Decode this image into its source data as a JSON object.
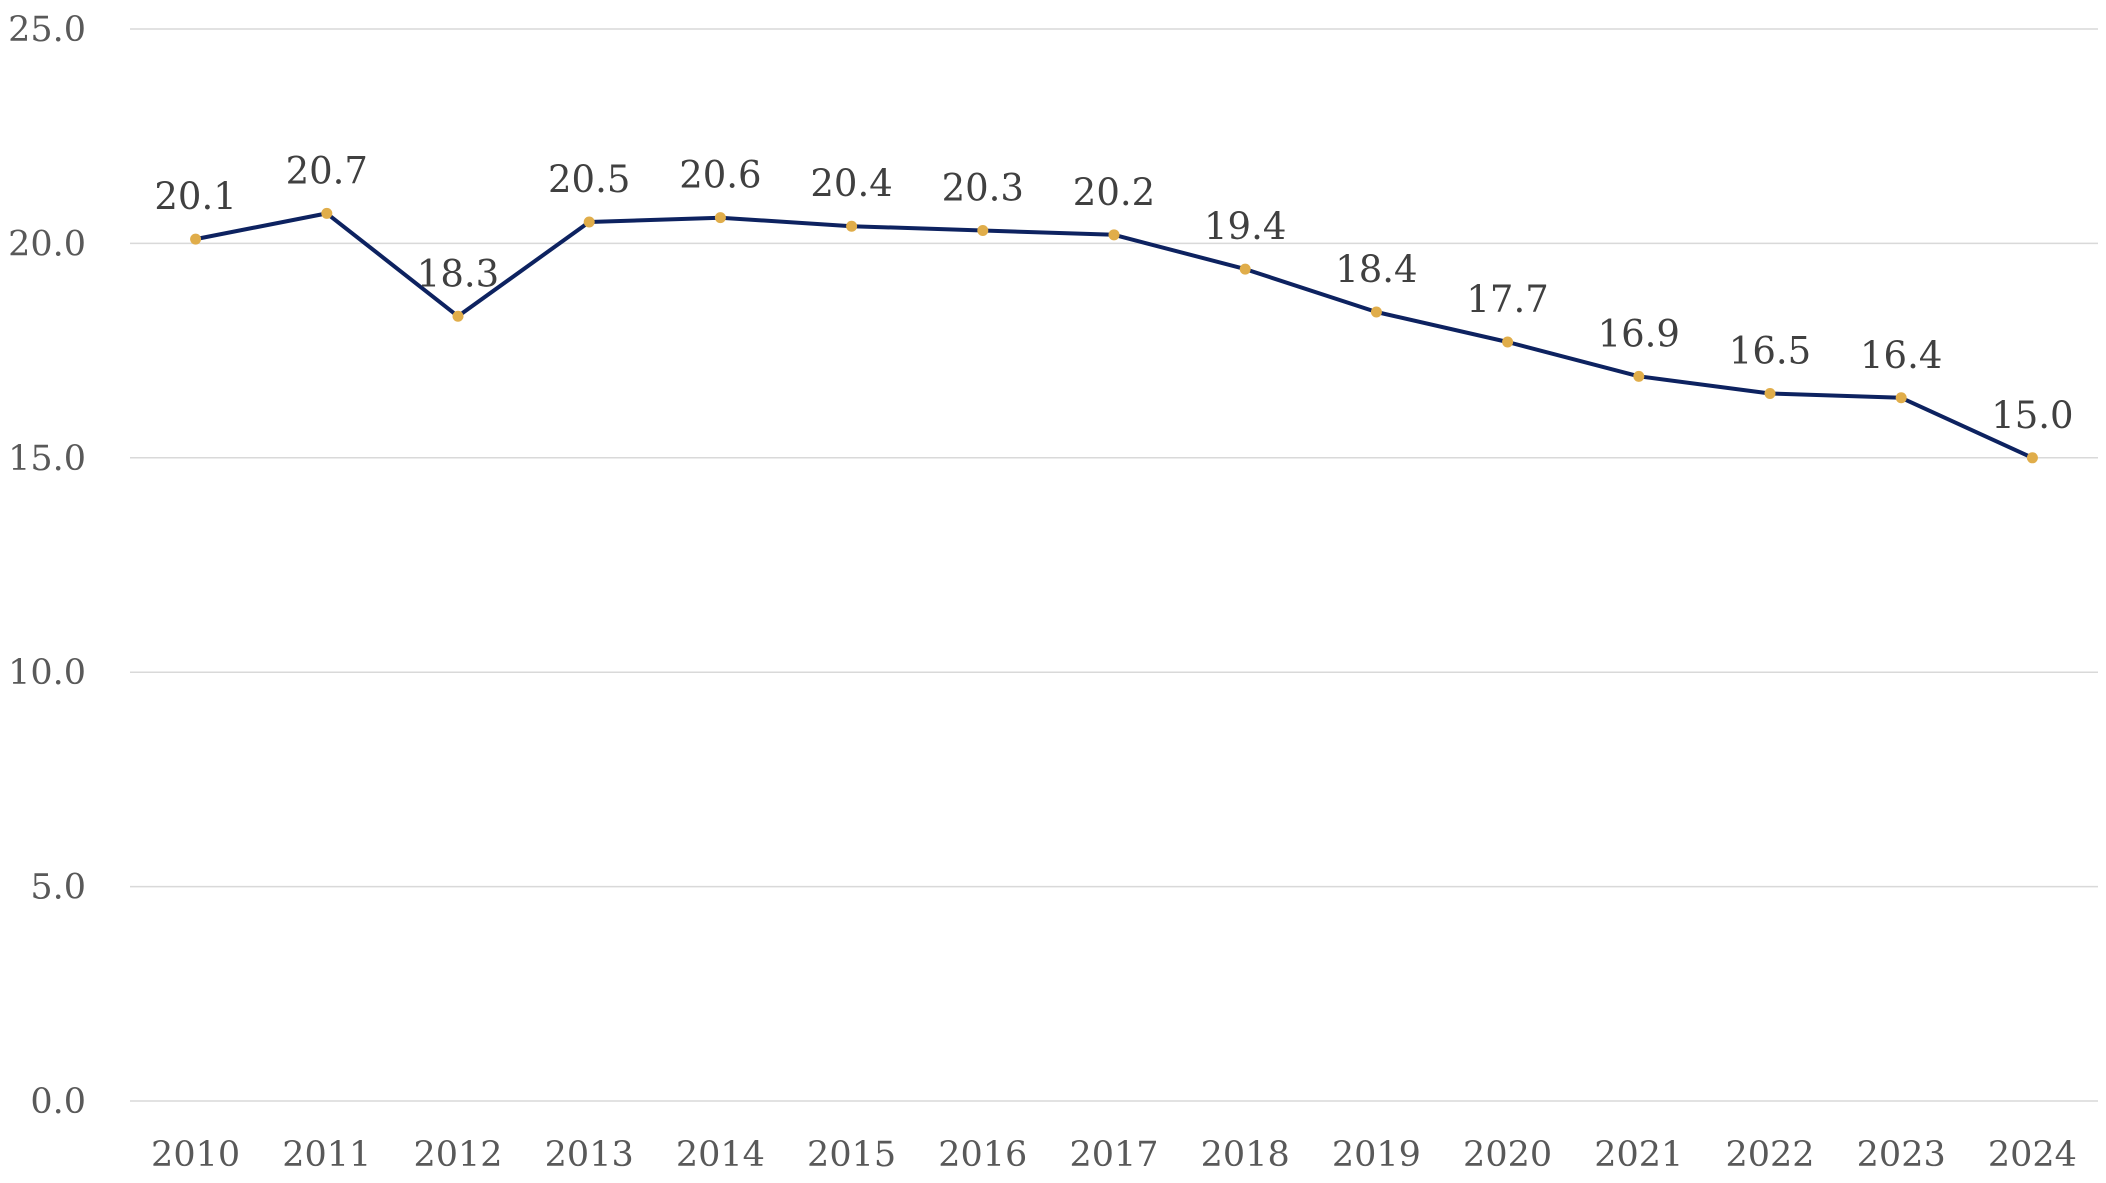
{
  "chart_data": {
    "type": "line",
    "title": "",
    "xlabel": "",
    "ylabel": "",
    "categories": [
      "2010",
      "2011",
      "2012",
      "2013",
      "2014",
      "2015",
      "2016",
      "2017",
      "2018",
      "2019",
      "2020",
      "2021",
      "2022",
      "2023",
      "2024"
    ],
    "series": [
      {
        "values": [
          20.1,
          20.7,
          18.3,
          20.5,
          20.6,
          20.4,
          20.3,
          20.2,
          19.4,
          18.4,
          17.7,
          16.9,
          16.5,
          16.4,
          15.0
        ],
        "data_labels": [
          "20.1",
          "20.7",
          "18.3",
          "20.5",
          "20.6",
          "20.4",
          "20.3",
          "20.2",
          "19.4",
          "18.4",
          "17.7",
          "16.9",
          "16.5",
          "16.4",
          "15.0"
        ],
        "line_color": "#0d2260",
        "marker_color": "#e0ad4a"
      }
    ],
    "y_ticks": [
      "0.0",
      "5.0",
      "10.0",
      "15.0",
      "20.0",
      "25.0"
    ],
    "ylim": [
      0,
      25
    ],
    "grid": true,
    "legend": "none"
  }
}
